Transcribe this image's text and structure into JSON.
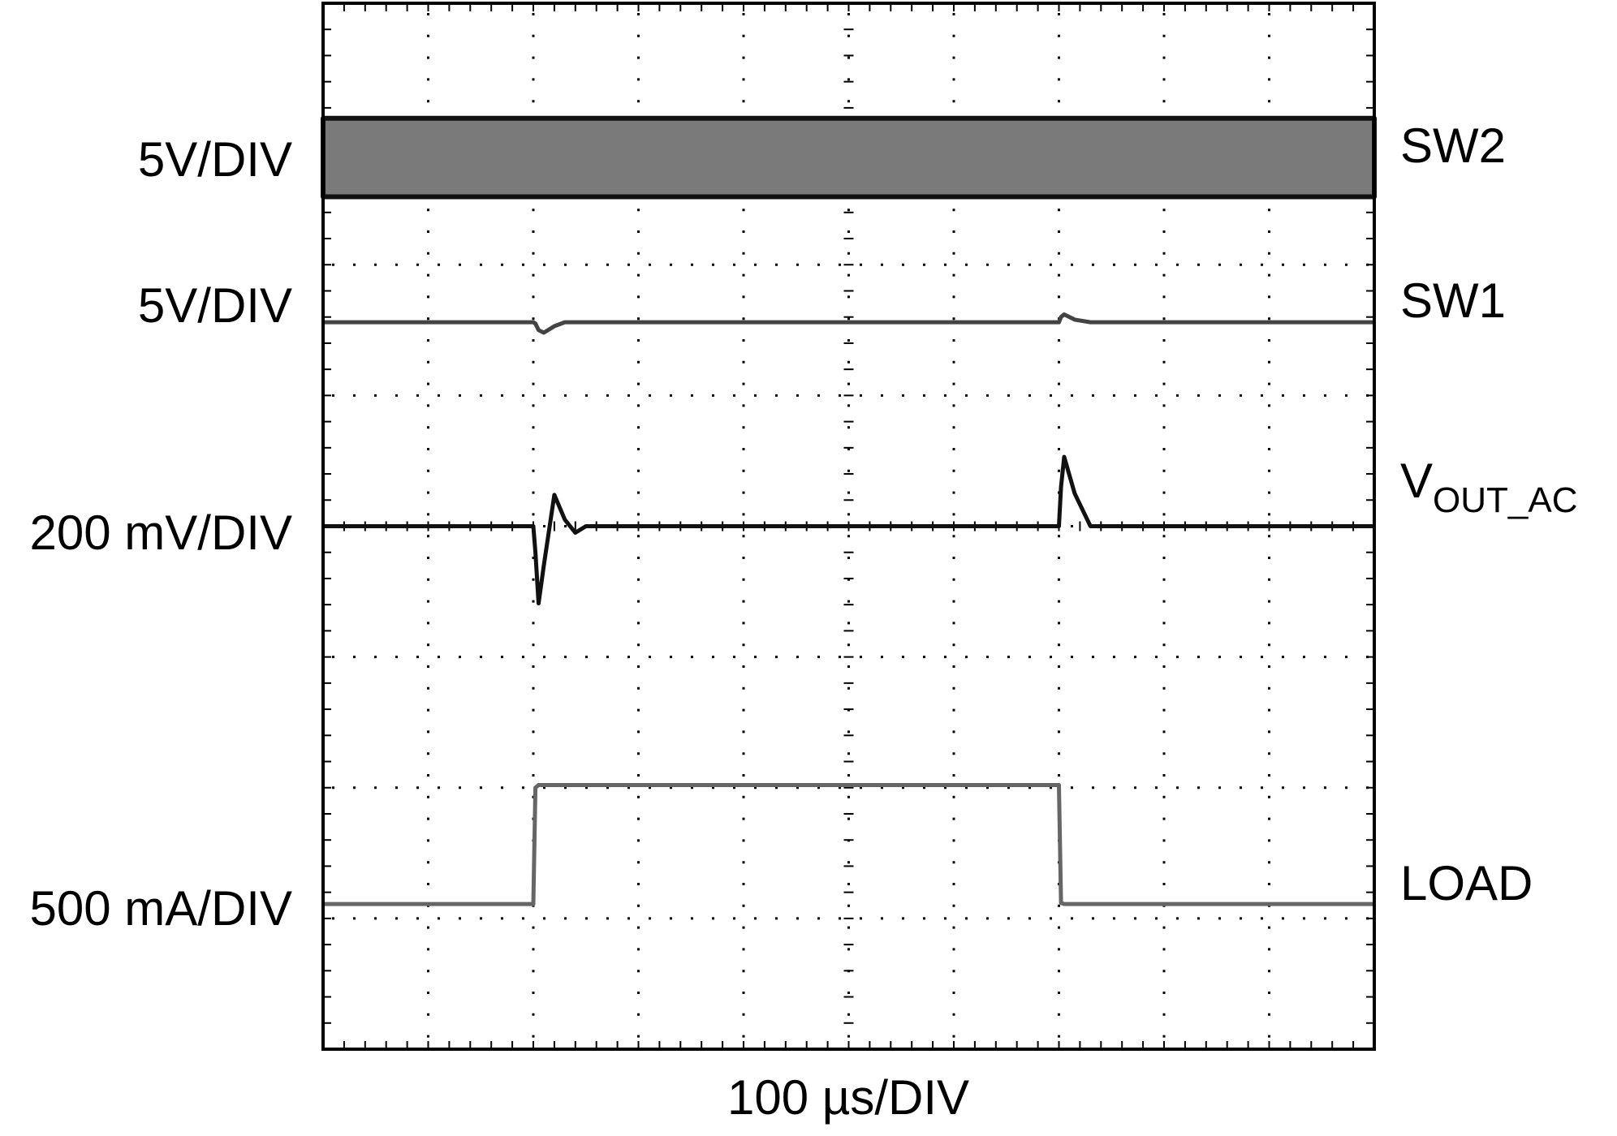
{
  "chart_data": {
    "type": "line",
    "x_axis_label": "100 µs/DIV",
    "xlim": [
      0,
      10
    ],
    "ylim": [
      0,
      8
    ],
    "grid": {
      "x_divisions": 10,
      "y_divisions": 8
    },
    "x": [
      0,
      2,
      2.02,
      2.05,
      2.1,
      2.2,
      2.3,
      2.4,
      2.5,
      5,
      7,
      7.02,
      7.05,
      7.15,
      7.3,
      10
    ],
    "series": [
      {
        "name": "SW2",
        "scale": "5V/DIV",
        "color": "#7a7a7a",
        "values": [
          7.12,
          7.12,
          7.12,
          7.12,
          7.12,
          7.12,
          7.12,
          7.12,
          7.12,
          7.12,
          7.12,
          7.12,
          7.12,
          7.12,
          7.12,
          7.12
        ],
        "low": [
          6.52,
          6.52,
          6.52,
          6.52,
          6.52,
          6.52,
          6.52,
          6.52,
          6.52,
          6.52,
          6.52,
          6.52,
          6.52,
          6.52,
          6.52,
          6.52
        ]
      },
      {
        "name": "SW1",
        "scale": "5V/DIV",
        "color": "#444444",
        "values": [
          5.56,
          5.56,
          5.55,
          5.5,
          5.48,
          5.53,
          5.56,
          5.56,
          5.56,
          5.56,
          5.56,
          5.6,
          5.62,
          5.58,
          5.56,
          5.56
        ]
      },
      {
        "name": "V",
        "name_subscript": "OUT_AC",
        "scale": "200 mV/DIV",
        "color": "#111111",
        "values": [
          4,
          4,
          3.8,
          3.41,
          3.7,
          4.24,
          4.05,
          3.95,
          4,
          4,
          4,
          4.3,
          4.53,
          4.25,
          4,
          4
        ]
      },
      {
        "name": "LOAD",
        "scale": "500 mA/DIV",
        "color": "#666666",
        "values": [
          1.11,
          1.11,
          2,
          2.02,
          2.02,
          2.02,
          2.02,
          2.02,
          2.02,
          2.02,
          2.02,
          1.12,
          1.11,
          1.11,
          1.11,
          1.11
        ]
      }
    ]
  }
}
